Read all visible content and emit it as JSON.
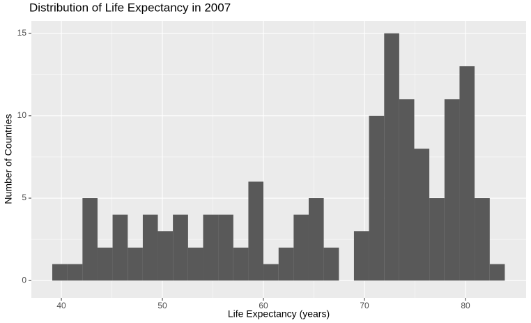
{
  "chart_data": {
    "type": "histogram",
    "title": "Distribution of Life Expectancy in 2007",
    "x_label": "Life Expectancy (years)",
    "y_label": "Number of Countries",
    "bins": [
      39.1,
      40.59,
      42.09,
      43.58,
      45.07,
      46.57,
      48.06,
      49.55,
      51.04,
      52.54,
      54.03,
      55.52,
      57.02,
      58.51,
      60.0,
      61.5,
      62.99,
      64.48,
      65.97,
      67.47,
      68.96,
      70.45,
      71.95,
      73.44,
      74.93,
      76.42,
      77.92,
      79.41,
      80.9,
      82.4,
      83.89
    ],
    "values": [
      1,
      1,
      5,
      2,
      4,
      2,
      4,
      3,
      4,
      2,
      4,
      4,
      2,
      6,
      1,
      2,
      4,
      5,
      2,
      0,
      3,
      10,
      15,
      11,
      8,
      5,
      11,
      13,
      5,
      1
    ],
    "color": "#595959",
    "xlim": [
      37.03,
      86.0
    ],
    "xticks": [
      40,
      50,
      60,
      70,
      80
    ],
    "ylim": [
      -1.05,
      15.75
    ],
    "yticks": [
      0,
      5,
      10,
      15
    ],
    "grid": true
  }
}
